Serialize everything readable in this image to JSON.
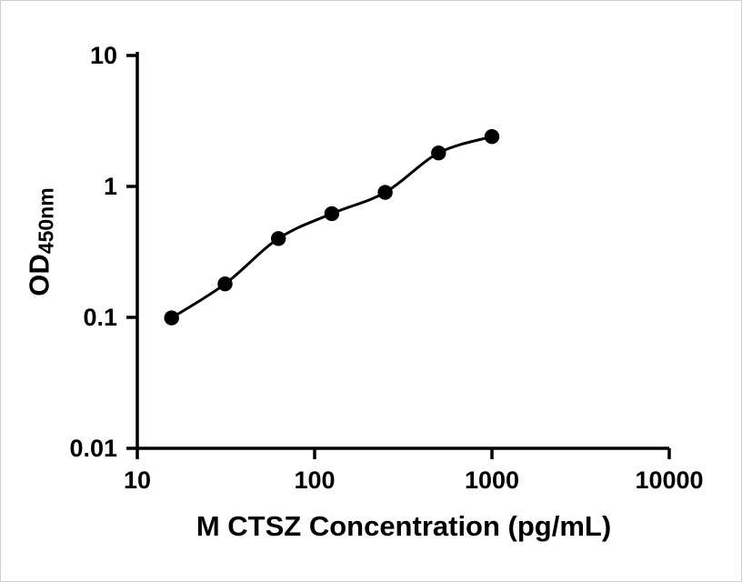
{
  "figure": {
    "background": "#ffffff",
    "border_color": "#cfcfcf"
  },
  "chart_data": {
    "type": "scatter",
    "title": "",
    "xlabel": "M CTSZ Concentration (pg/mL)",
    "ylabel_main": "OD",
    "ylabel_sub": "450nm",
    "x_scale": "log10",
    "y_scale": "log10",
    "xlim": [
      10,
      10000
    ],
    "ylim": [
      0.01,
      10
    ],
    "grid": false,
    "legend": "none",
    "x_ticks": [
      {
        "value": 10,
        "label": "10"
      },
      {
        "value": 100,
        "label": "100"
      },
      {
        "value": 1000,
        "label": "1000"
      },
      {
        "value": 10000,
        "label": "10000"
      }
    ],
    "y_ticks": [
      {
        "value": 10,
        "label": "10"
      },
      {
        "value": 1,
        "label": "1"
      },
      {
        "value": 0.1,
        "label": "0.1"
      },
      {
        "value": 0.01,
        "label": "0.01"
      }
    ],
    "series": [
      {
        "marker": "filled-circle",
        "x": [
          15.6,
          31.25,
          62.5,
          125,
          250,
          500,
          1000
        ],
        "y": [
          0.099,
          0.18,
          0.4,
          0.62,
          0.9,
          1.8,
          2.4
        ]
      }
    ],
    "curve": "smooth-fit-through-points",
    "axis_color": "#000000",
    "line_color": "#000000",
    "marker_color": "#000000"
  }
}
